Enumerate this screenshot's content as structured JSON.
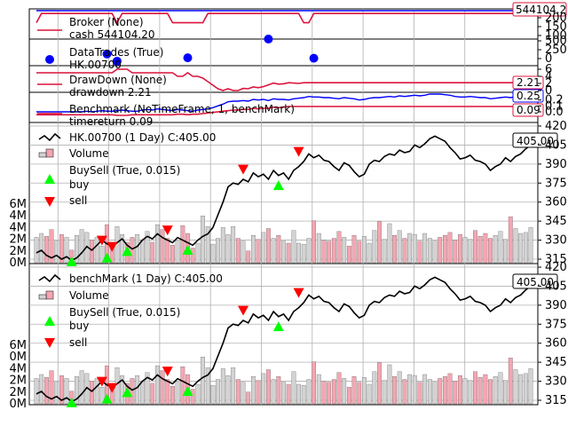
{
  "colors": {
    "price": "#000000",
    "cash": "#dc143c",
    "value": "#0000ff",
    "drawdown": "#dc143c",
    "timereturn": "#dc143c",
    "benchreturn": "#0000ff",
    "buy": "#00ff00",
    "sell": "#ff0000",
    "vol_up": "#d3d3d3",
    "vol_down": "#f4a6b2",
    "grid": "#b0b0b0",
    "trade": "#0000ff"
  },
  "panels": {
    "broker": {
      "legend": "Broker (None)",
      "legend_sub": "cash 544104.20",
      "ticks": [
        "200",
        "150",
        "100"
      ],
      "value_tag": "544104.2"
    },
    "trades": {
      "legend": "DataTrades (True)",
      "legend_sub": "HK.00700",
      "ticks": [
        "500",
        "250",
        "0"
      ]
    },
    "drawdown": {
      "legend": "DrawDown (None)",
      "legend_sub": "drawdown 2.21",
      "ticks": [
        "6",
        "4",
        "2",
        "0"
      ],
      "value_tag": "2.21"
    },
    "benchmark": {
      "legend": "Benchmark (NoTimeFrame, 1, benchMark)",
      "legend_sub": "timereturn 0.09",
      "ticks": [
        "0.2",
        "0.1",
        "0.0"
      ],
      "value_tag_1": "0.25",
      "value_tag_2": "0.09"
    },
    "data0": {
      "legend_price": "HK.00700 (1 Day) C:405.00",
      "legend_volume": "Volume",
      "legend_buysell": "BuySell (True, 0.015)",
      "legend_buy": "buy",
      "legend_sell": "sell",
      "price_tag": "405.00",
      "price_ticks": [
        "420",
        "405",
        "390",
        "375",
        "360",
        "345",
        "330",
        "315"
      ],
      "volume_ticks": [
        "6M",
        "4M",
        "4M",
        "2M",
        "2M",
        "0M"
      ]
    },
    "data1": {
      "legend_price": "benchMark (1 Day) C:405.00",
      "legend_volume": "Volume",
      "legend_buysell": "BuySell (True, 0.015)",
      "legend_buy": "buy",
      "legend_sell": "sell",
      "price_tag": "405.00",
      "price_ticks": [
        "420",
        "405",
        "390",
        "375",
        "360",
        "345",
        "330",
        "315"
      ],
      "volume_ticks": [
        "6M",
        "0M",
        "4M",
        "2M",
        "2M",
        "0M"
      ]
    }
  },
  "chart_data": {
    "type": "line",
    "close": [
      320,
      322,
      318,
      316,
      318,
      315,
      317,
      314,
      316,
      320,
      325,
      322,
      326,
      330,
      327,
      325,
      328,
      331,
      326,
      323,
      325,
      330,
      333,
      331,
      335,
      332,
      330,
      328,
      332,
      330,
      328,
      326,
      330,
      333,
      335,
      340,
      350,
      360,
      372,
      375,
      374,
      378,
      376,
      383,
      380,
      382,
      378,
      385,
      381,
      383,
      378,
      385,
      388,
      392,
      398,
      395,
      397,
      393,
      392,
      388,
      385,
      391,
      389,
      384,
      380,
      382,
      390,
      393,
      392,
      396,
      398,
      397,
      401,
      399,
      400,
      405,
      403,
      406,
      410,
      412,
      410,
      408,
      403,
      399,
      394,
      395,
      397,
      393,
      392,
      390,
      385,
      388,
      390,
      395,
      392,
      396,
      398,
      402,
      405
    ],
    "volume": [
      2.6,
      3.0,
      2.7,
      3.4,
      2.2,
      2.9,
      2.6,
      1.3,
      2.8,
      3.4,
      3.1,
      2.3,
      2.6,
      1.7,
      3.9,
      2.1,
      3.7,
      2.9,
      2.1,
      2.6,
      2.9,
      2.3,
      3.2,
      2.1,
      3.9,
      3.4,
      2.5,
      1.8,
      2.2,
      3.8,
      3.0,
      1.5,
      2.0,
      4.8,
      3.7,
      1.9,
      2.5,
      3.6,
      2.9,
      3.7,
      2.5,
      2.2,
      1.2,
      2.8,
      2.4,
      3.1,
      3.5,
      2.5,
      2.8,
      2.2,
      2.0,
      3.3,
      2.0,
      1.9,
      2.5,
      4.3,
      3.0,
      2.3,
      2.2,
      2.5,
      3.2,
      2.6,
      1.7,
      2.8,
      2.2,
      2.7,
      2.0,
      3.3,
      4.2,
      2.4,
      4.0,
      2.8,
      3.3,
      2.5,
      3.0,
      2.9,
      2.2,
      3.0,
      2.5,
      2.2,
      2.6,
      2.8,
      3.1,
      2.3,
      2.9,
      2.6,
      2.4,
      3.3,
      2.7,
      3.0,
      2.5,
      2.8,
      3.2,
      2.4,
      4.7,
      3.5,
      3.0,
      3.1,
      3.6
    ],
    "buys": [
      {
        "i": 7,
        "price": 313
      },
      {
        "i": 14,
        "price": 316
      },
      {
        "i": 18,
        "price": 321
      },
      {
        "i": 30,
        "price": 322
      },
      {
        "i": 48,
        "price": 373
      }
    ],
    "sells": [
      {
        "i": 13,
        "price": 330
      },
      {
        "i": 15,
        "price": 325
      },
      {
        "i": 26,
        "price": 338
      },
      {
        "i": 41,
        "price": 386
      },
      {
        "i": 52,
        "price": 400
      }
    ],
    "cash_path": [
      100,
      200,
      200,
      200,
      200,
      200,
      200,
      200,
      200,
      200,
      200,
      200,
      200,
      200,
      200,
      200,
      100,
      200,
      200,
      200,
      200,
      200,
      200,
      200,
      200,
      200,
      200,
      100,
      100,
      100,
      100,
      100,
      100,
      100,
      200,
      200,
      200,
      200,
      200,
      200,
      200,
      200,
      200,
      200,
      200,
      200,
      200,
      200,
      200,
      200,
      200,
      200,
      200,
      100,
      100,
      200,
      200,
      200,
      200,
      200,
      200,
      200,
      200,
      200,
      200,
      200,
      200,
      200,
      200,
      200,
      200,
      200,
      200,
      200,
      200,
      200,
      200,
      200,
      200,
      200,
      200,
      200,
      200,
      200,
      200,
      200,
      200,
      200,
      200,
      200,
      200,
      200,
      200,
      200,
      200,
      200,
      200,
      200,
      200
    ],
    "trade_points": [
      {
        "i": 14,
        "v": 150
      },
      {
        "i": 16,
        "v": -20
      },
      {
        "i": 30,
        "v": 60
      },
      {
        "i": 46,
        "v": 500
      },
      {
        "i": 55,
        "v": 50
      }
    ],
    "drawdown": [
      5,
      5,
      5,
      5,
      5,
      5,
      5,
      5,
      5,
      5,
      5,
      5,
      5,
      5,
      5,
      5,
      6,
      6,
      6,
      5,
      5,
      5,
      5,
      5,
      5,
      5,
      5,
      5,
      4,
      4,
      5,
      4,
      4,
      3.5,
      2.5,
      1.5,
      0.5,
      0,
      0.5,
      0,
      0,
      0.6,
      0.5,
      1,
      0.8,
      1.1,
      1.6,
      2.1,
      1.8,
      1.9,
      2.2,
      2.1,
      2.0,
      2.2,
      2.2,
      2.2,
      2.2,
      2.2,
      2.2,
      2.2,
      2.2,
      2.2,
      2.2,
      2.2,
      2.2,
      2.2,
      2.2,
      2.2,
      2.2,
      2.2,
      2.2,
      2.2,
      2.2,
      2.2,
      2.2,
      2.2,
      2.2,
      2.2,
      2.2,
      2.2,
      2.2,
      2.2,
      2.2,
      2.2,
      2.2,
      2.2,
      2.2,
      2.2,
      2.2,
      2.2,
      2.2,
      2.2,
      2.2,
      2.2,
      2.2,
      2.2,
      2.2,
      2.2,
      2.21
    ],
    "benchreturn": [
      0.0,
      0.0,
      0.0,
      0.0,
      0.0,
      0.0,
      0.0,
      0.0,
      0.0,
      0.0,
      0.01,
      0.0,
      0.01,
      0.02,
      0.01,
      0.01,
      0.02,
      0.03,
      0.02,
      0.01,
      0.01,
      0.03,
      0.04,
      0.03,
      0.05,
      0.04,
      0.03,
      0.02,
      0.04,
      0.03,
      0.02,
      0.01,
      0.03,
      0.04,
      0.05,
      0.07,
      0.1,
      0.13,
      0.17,
      0.18,
      0.18,
      0.19,
      0.18,
      0.21,
      0.2,
      0.21,
      0.19,
      0.22,
      0.21,
      0.21,
      0.2,
      0.22,
      0.23,
      0.24,
      0.26,
      0.25,
      0.25,
      0.24,
      0.24,
      0.23,
      0.22,
      0.24,
      0.23,
      0.22,
      0.2,
      0.21,
      0.23,
      0.24,
      0.24,
      0.25,
      0.26,
      0.25,
      0.27,
      0.26,
      0.27,
      0.28,
      0.27,
      0.28,
      0.3,
      0.3,
      0.3,
      0.29,
      0.28,
      0.26,
      0.25,
      0.25,
      0.26,
      0.25,
      0.24,
      0.24,
      0.22,
      0.23,
      0.24,
      0.25,
      0.24,
      0.26,
      0.26,
      0.27,
      0.25
    ],
    "timereturn": [
      -0.05,
      -0.05,
      -0.05,
      -0.05,
      -0.05,
      -0.05,
      -0.05,
      -0.05,
      -0.05,
      -0.05,
      -0.05,
      -0.05,
      -0.05,
      -0.05,
      -0.05,
      -0.05,
      -0.06,
      -0.06,
      -0.06,
      -0.05,
      -0.05,
      -0.05,
      -0.05,
      -0.05,
      -0.05,
      -0.05,
      -0.05,
      -0.05,
      -0.04,
      -0.04,
      -0.05,
      -0.04,
      -0.04,
      -0.03,
      -0.02,
      -0.01,
      0.0,
      0.01,
      0.02,
      0.03,
      0.03,
      0.04,
      0.04,
      0.06,
      0.05,
      0.06,
      0.06,
      0.08,
      0.07,
      0.08,
      0.09,
      0.09,
      0.09,
      0.09,
      0.09,
      0.09,
      0.09,
      0.09,
      0.09,
      0.09,
      0.09,
      0.09,
      0.09,
      0.09,
      0.09,
      0.09,
      0.09,
      0.09,
      0.09,
      0.09,
      0.09,
      0.09,
      0.09,
      0.09,
      0.09,
      0.09,
      0.09,
      0.09,
      0.09,
      0.09,
      0.09,
      0.09,
      0.09,
      0.09,
      0.09,
      0.09,
      0.09,
      0.09,
      0.09,
      0.09,
      0.09,
      0.09,
      0.09,
      0.09,
      0.09,
      0.09,
      0.09,
      0.09,
      0.09
    ]
  }
}
